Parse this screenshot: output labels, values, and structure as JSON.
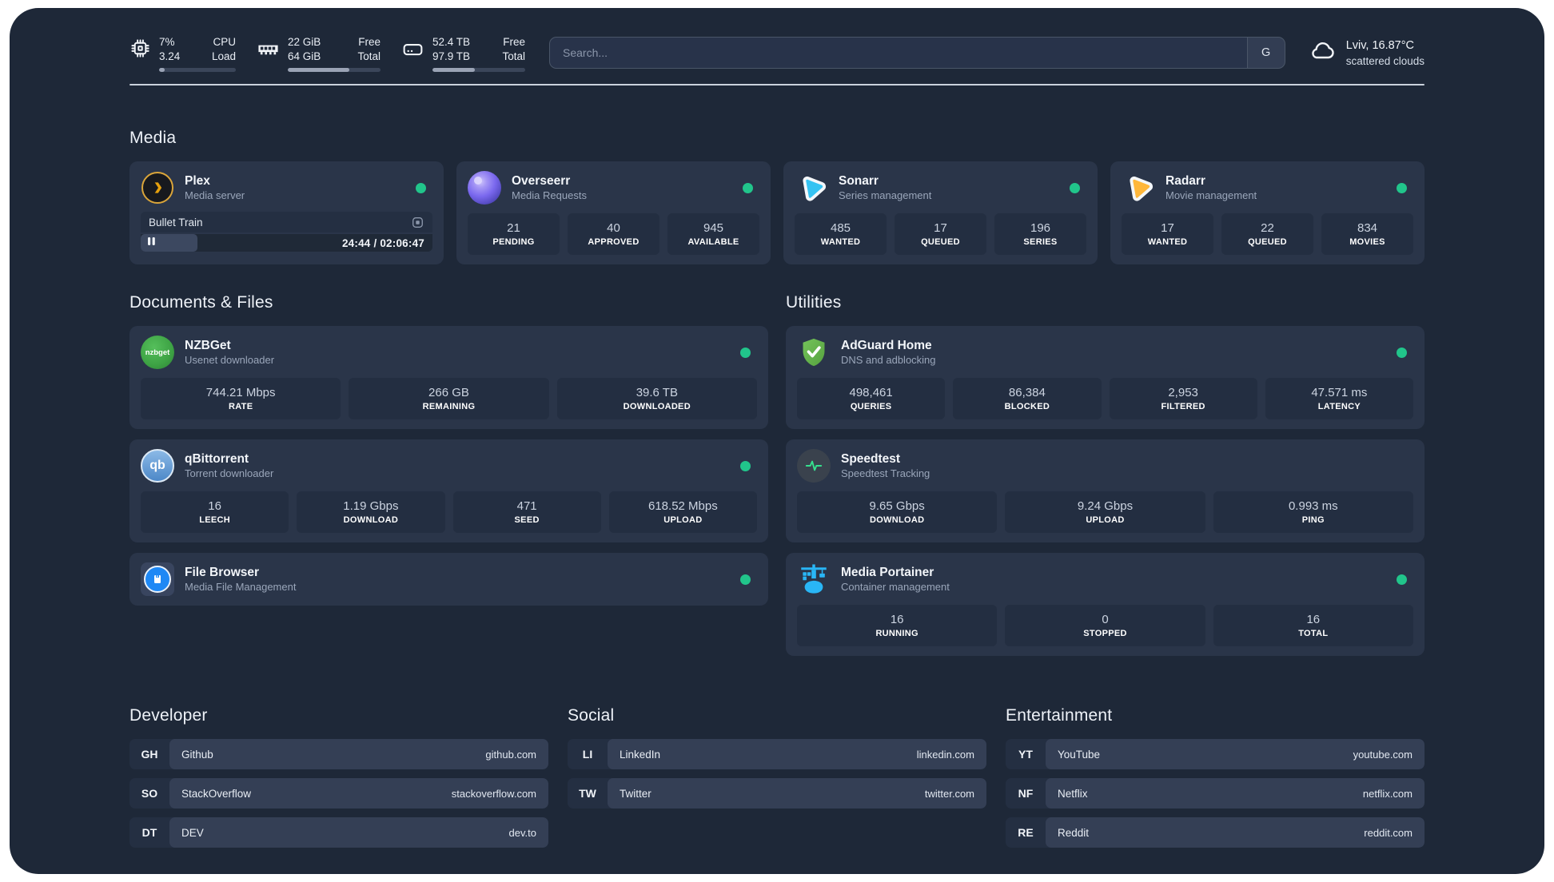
{
  "colors": {
    "status_online": "#21c58b",
    "dashboard_bg": "#1e2838",
    "card_bg": "#2a3549"
  },
  "header": {
    "cpu": {
      "v1": "7%",
      "v2": "3.24",
      "l1": "CPU",
      "l2": "Load",
      "progress": 7
    },
    "ram": {
      "v1": "22 GiB",
      "v2": "64 GiB",
      "l1": "Free",
      "l2": "Total",
      "progress": 66
    },
    "disk": {
      "v1": "52.4 TB",
      "v2": "97.9 TB",
      "l1": "Free",
      "l2": "Total",
      "progress": 46
    },
    "search": {
      "placeholder": "Search...",
      "provider": "G"
    },
    "weather": {
      "location": "Lviv, 16.87°C",
      "condition": "scattered clouds"
    }
  },
  "media": {
    "title": "Media",
    "plex": {
      "name": "Plex",
      "desc": "Media server",
      "status": "online",
      "now_playing": "Bullet Train",
      "time": "24:44 / 02:06:47",
      "progress": 19.5
    },
    "overseerr": {
      "name": "Overseerr",
      "desc": "Media Requests",
      "status": "online",
      "stats": [
        {
          "value": "21",
          "label": "PENDING"
        },
        {
          "value": "40",
          "label": "APPROVED"
        },
        {
          "value": "945",
          "label": "AVAILABLE"
        }
      ]
    },
    "sonarr": {
      "name": "Sonarr",
      "desc": "Series management",
      "status": "online",
      "stats": [
        {
          "value": "485",
          "label": "WANTED"
        },
        {
          "value": "17",
          "label": "QUEUED"
        },
        {
          "value": "196",
          "label": "SERIES"
        }
      ]
    },
    "radarr": {
      "name": "Radarr",
      "desc": "Movie management",
      "status": "online",
      "stats": [
        {
          "value": "17",
          "label": "WANTED"
        },
        {
          "value": "22",
          "label": "QUEUED"
        },
        {
          "value": "834",
          "label": "MOVIES"
        }
      ]
    }
  },
  "documents": {
    "title": "Documents & Files",
    "nzbget": {
      "name": "NZBGet",
      "desc": "Usenet downloader",
      "status": "online",
      "icon_text": "nzbget",
      "stats": [
        {
          "value": "744.21 Mbps",
          "label": "RATE"
        },
        {
          "value": "266 GB",
          "label": "REMAINING"
        },
        {
          "value": "39.6 TB",
          "label": "DOWNLOADED"
        }
      ]
    },
    "qbittorrent": {
      "name": "qBittorrent",
      "desc": "Torrent downloader",
      "status": "online",
      "icon_text": "qb",
      "stats": [
        {
          "value": "16",
          "label": "LEECH"
        },
        {
          "value": "1.19 Gbps",
          "label": "DOWNLOAD"
        },
        {
          "value": "471",
          "label": "SEED"
        },
        {
          "value": "618.52 Mbps",
          "label": "UPLOAD"
        }
      ]
    },
    "filebrowser": {
      "name": "File Browser",
      "desc": "Media File Management",
      "status": "online"
    }
  },
  "utilities": {
    "title": "Utilities",
    "adguard": {
      "name": "AdGuard Home",
      "desc": "DNS and adblocking",
      "status": "online",
      "stats": [
        {
          "value": "498,461",
          "label": "QUERIES"
        },
        {
          "value": "86,384",
          "label": "BLOCKED"
        },
        {
          "value": "2,953",
          "label": "FILTERED"
        },
        {
          "value": "47.571 ms",
          "label": "LATENCY"
        }
      ]
    },
    "speedtest": {
      "name": "Speedtest",
      "desc": "Speedtest Tracking",
      "status": "online",
      "stats": [
        {
          "value": "9.65 Gbps",
          "label": "DOWNLOAD"
        },
        {
          "value": "9.24 Gbps",
          "label": "UPLOAD"
        },
        {
          "value": "0.993 ms",
          "label": "PING"
        }
      ]
    },
    "portainer": {
      "name": "Media Portainer",
      "desc": "Container management",
      "status": "online",
      "stats": [
        {
          "value": "16",
          "label": "RUNNING"
        },
        {
          "value": "0",
          "label": "STOPPED"
        },
        {
          "value": "16",
          "label": "TOTAL"
        }
      ]
    }
  },
  "bookmarks": {
    "developer": {
      "title": "Developer",
      "links": [
        {
          "abbr": "GH",
          "name": "Github",
          "url": "github.com"
        },
        {
          "abbr": "SO",
          "name": "StackOverflow",
          "url": "stackoverflow.com"
        },
        {
          "abbr": "DT",
          "name": "DEV",
          "url": "dev.to"
        }
      ]
    },
    "social": {
      "title": "Social",
      "links": [
        {
          "abbr": "LI",
          "name": "LinkedIn",
          "url": "linkedin.com"
        },
        {
          "abbr": "TW",
          "name": "Twitter",
          "url": "twitter.com"
        }
      ]
    },
    "entertainment": {
      "title": "Entertainment",
      "links": [
        {
          "abbr": "YT",
          "name": "YouTube",
          "url": "youtube.com"
        },
        {
          "abbr": "NF",
          "name": "Netflix",
          "url": "netflix.com"
        },
        {
          "abbr": "RE",
          "name": "Reddit",
          "url": "reddit.com"
        }
      ]
    }
  }
}
